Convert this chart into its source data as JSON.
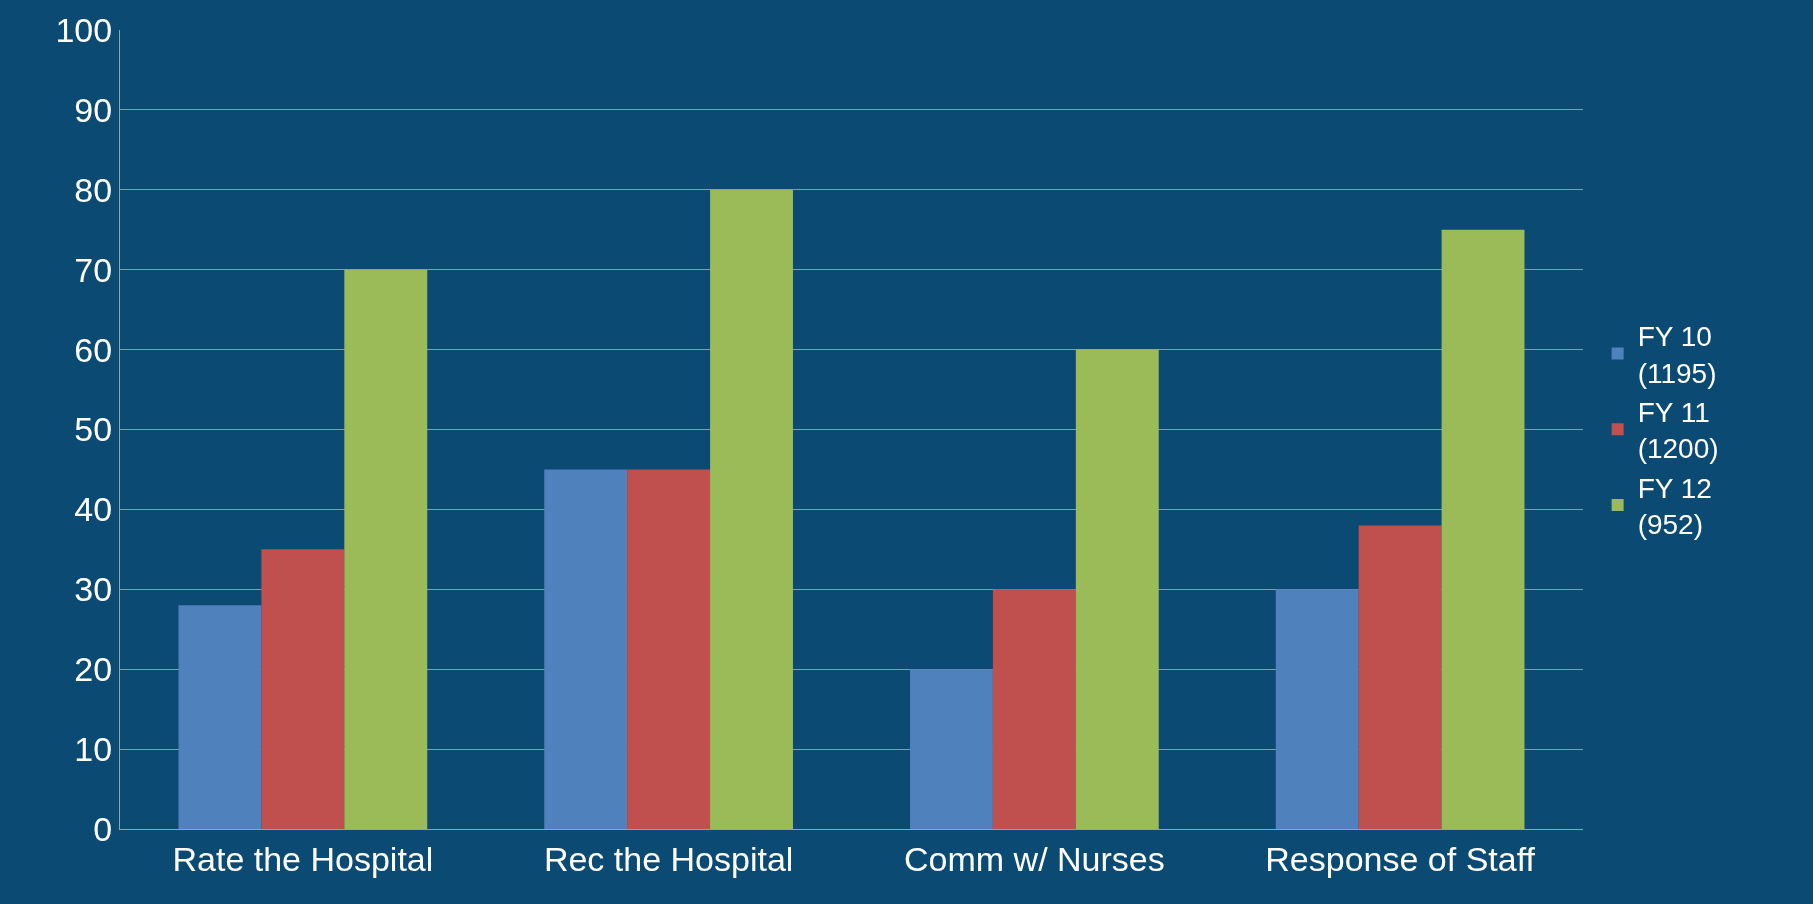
{
  "chart_data": {
    "type": "bar",
    "categories": [
      "Rate the Hospital",
      "Rec the Hospital",
      "Comm w/ Nurses",
      "Response of Staff"
    ],
    "series": [
      {
        "name": "FY 10\n(1195)",
        "color": "#4f81bd",
        "values": [
          28,
          45,
          20,
          30
        ]
      },
      {
        "name": "FY 11\n(1200)",
        "color": "#c0504d",
        "values": [
          35,
          45,
          30,
          38
        ]
      },
      {
        "name": "FY 12\n(952)",
        "color": "#9bbb59",
        "values": [
          70,
          80,
          60,
          75
        ]
      }
    ],
    "ylim": [
      0,
      100
    ],
    "yticks": [
      0,
      10,
      20,
      30,
      40,
      50,
      60,
      70,
      80,
      90,
      100
    ],
    "grid": "y",
    "legend": "right"
  }
}
